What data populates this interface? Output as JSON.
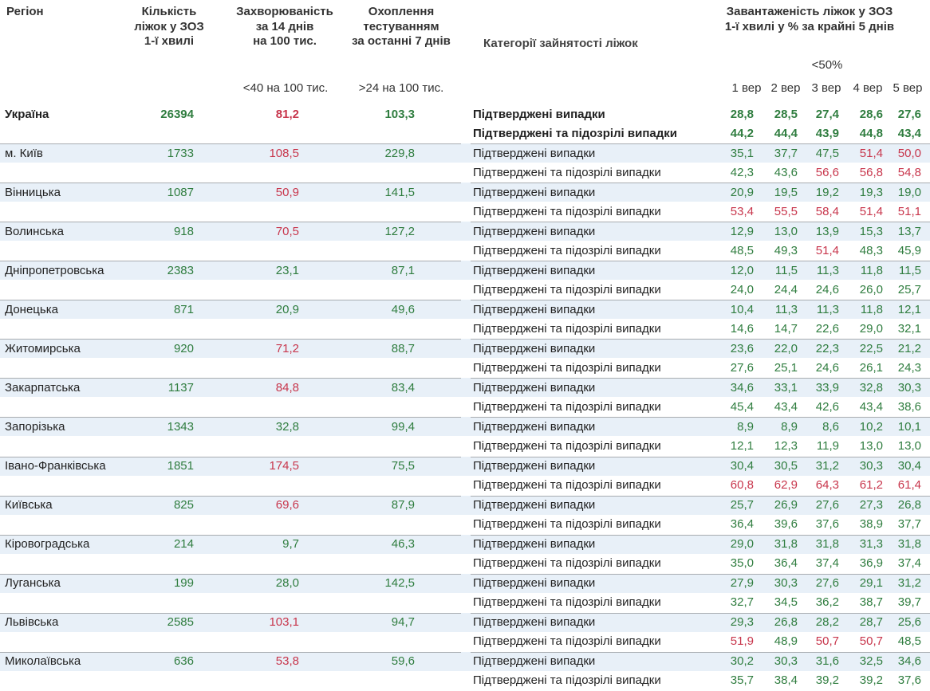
{
  "header": {
    "region": "Регіон",
    "beds": [
      "Кількість",
      "ліжок у ЗОЗ",
      "1-ї хвилі"
    ],
    "incidence": [
      "Захворюваність",
      "за 14 днів",
      "на 100 тис."
    ],
    "testing": [
      "Охоплення",
      "тестуванням",
      "за останні 7 днів"
    ],
    "categories_title": "Категорії зайнятості ліжок",
    "load": [
      "Завантаженість ліжок у ЗОЗ",
      "1-ї хвилі у % за крайні 5 днів"
    ],
    "incidence_threshold": "<40 на 100 тис.",
    "testing_threshold": ">24 на 100 тис.",
    "load_threshold": "<50%",
    "days": [
      "1 вер",
      "2 вер",
      "3 вер",
      "4 вер",
      "5 вер"
    ]
  },
  "categories": [
    "Підтверджені випадки",
    "Підтверджені та підозрілі випадки"
  ],
  "palette": {
    "g": "#2f7d3f",
    "r": "#c8364c"
  },
  "rows": [
    {
      "name": "Україна",
      "bold": true,
      "beds": "26394",
      "incidence": "81,2",
      "testing": "103,3",
      "colors": [
        "g",
        "r",
        "g"
      ],
      "confirmed": [
        "28,8",
        "28,5",
        "27,4",
        "28,6",
        "27,6"
      ],
      "confirmed_colors": [
        "g",
        "g",
        "g",
        "g",
        "g"
      ],
      "suspected": [
        "44,2",
        "44,4",
        "43,9",
        "44,8",
        "43,4"
      ],
      "suspected_colors": [
        "g",
        "g",
        "g",
        "g",
        "g"
      ]
    },
    {
      "name": "м. Київ",
      "beds": "1733",
      "incidence": "108,5",
      "testing": "229,8",
      "colors": [
        "g",
        "r",
        "g"
      ],
      "confirmed": [
        "35,1",
        "37,7",
        "47,5",
        "51,4",
        "50,0"
      ],
      "confirmed_colors": [
        "g",
        "g",
        "g",
        "r",
        "r"
      ],
      "suspected": [
        "42,3",
        "43,6",
        "56,6",
        "56,8",
        "54,8"
      ],
      "suspected_colors": [
        "g",
        "g",
        "r",
        "r",
        "r"
      ]
    },
    {
      "name": "Вінницька",
      "beds": "1087",
      "incidence": "50,9",
      "testing": "141,5",
      "colors": [
        "g",
        "r",
        "g"
      ],
      "confirmed": [
        "20,9",
        "19,5",
        "19,2",
        "19,3",
        "19,0"
      ],
      "confirmed_colors": [
        "g",
        "g",
        "g",
        "g",
        "g"
      ],
      "suspected": [
        "53,4",
        "55,5",
        "58,4",
        "51,4",
        "51,1"
      ],
      "suspected_colors": [
        "r",
        "r",
        "r",
        "r",
        "r"
      ]
    },
    {
      "name": "Волинська",
      "beds": "918",
      "incidence": "70,5",
      "testing": "127,2",
      "colors": [
        "g",
        "r",
        "g"
      ],
      "confirmed": [
        "12,9",
        "13,0",
        "13,9",
        "15,3",
        "13,7"
      ],
      "confirmed_colors": [
        "g",
        "g",
        "g",
        "g",
        "g"
      ],
      "suspected": [
        "48,5",
        "49,3",
        "51,4",
        "48,3",
        "45,9"
      ],
      "suspected_colors": [
        "g",
        "g",
        "r",
        "g",
        "g"
      ]
    },
    {
      "name": "Дніпропетровська",
      "beds": "2383",
      "incidence": "23,1",
      "testing": "87,1",
      "colors": [
        "g",
        "g",
        "g"
      ],
      "confirmed": [
        "12,0",
        "11,5",
        "11,3",
        "11,8",
        "11,5"
      ],
      "confirmed_colors": [
        "g",
        "g",
        "g",
        "g",
        "g"
      ],
      "suspected": [
        "24,0",
        "24,4",
        "24,6",
        "26,0",
        "25,7"
      ],
      "suspected_colors": [
        "g",
        "g",
        "g",
        "g",
        "g"
      ]
    },
    {
      "name": "Донецька",
      "beds": "871",
      "incidence": "20,9",
      "testing": "49,6",
      "colors": [
        "g",
        "g",
        "g"
      ],
      "confirmed": [
        "10,4",
        "11,3",
        "11,3",
        "11,8",
        "12,1"
      ],
      "confirmed_colors": [
        "g",
        "g",
        "g",
        "g",
        "g"
      ],
      "suspected": [
        "14,6",
        "14,7",
        "22,6",
        "29,0",
        "32,1"
      ],
      "suspected_colors": [
        "g",
        "g",
        "g",
        "g",
        "g"
      ]
    },
    {
      "name": "Житомирська",
      "beds": "920",
      "incidence": "71,2",
      "testing": "88,7",
      "colors": [
        "g",
        "r",
        "g"
      ],
      "confirmed": [
        "23,6",
        "22,0",
        "22,3",
        "22,5",
        "21,2"
      ],
      "confirmed_colors": [
        "g",
        "g",
        "g",
        "g",
        "g"
      ],
      "suspected": [
        "27,6",
        "25,1",
        "24,6",
        "26,1",
        "24,3"
      ],
      "suspected_colors": [
        "g",
        "g",
        "g",
        "g",
        "g"
      ]
    },
    {
      "name": "Закарпатська",
      "beds": "1137",
      "incidence": "84,8",
      "testing": "83,4",
      "colors": [
        "g",
        "r",
        "g"
      ],
      "confirmed": [
        "34,6",
        "33,1",
        "33,9",
        "32,8",
        "30,3"
      ],
      "confirmed_colors": [
        "g",
        "g",
        "g",
        "g",
        "g"
      ],
      "suspected": [
        "45,4",
        "43,4",
        "42,6",
        "43,4",
        "38,6"
      ],
      "suspected_colors": [
        "g",
        "g",
        "g",
        "g",
        "g"
      ]
    },
    {
      "name": "Запорізька",
      "beds": "1343",
      "incidence": "32,8",
      "testing": "99,4",
      "colors": [
        "g",
        "g",
        "g"
      ],
      "confirmed": [
        "8,9",
        "8,9",
        "8,6",
        "10,2",
        "10,1"
      ],
      "confirmed_colors": [
        "g",
        "g",
        "g",
        "g",
        "g"
      ],
      "suspected": [
        "12,1",
        "12,3",
        "11,9",
        "13,0",
        "13,0"
      ],
      "suspected_colors": [
        "g",
        "g",
        "g",
        "g",
        "g"
      ]
    },
    {
      "name": "Івано-Франківська",
      "beds": "1851",
      "incidence": "174,5",
      "testing": "75,5",
      "colors": [
        "g",
        "r",
        "g"
      ],
      "confirmed": [
        "30,4",
        "30,5",
        "31,2",
        "30,3",
        "30,4"
      ],
      "confirmed_colors": [
        "g",
        "g",
        "g",
        "g",
        "g"
      ],
      "suspected": [
        "60,8",
        "62,9",
        "64,3",
        "61,2",
        "61,4"
      ],
      "suspected_colors": [
        "r",
        "r",
        "r",
        "r",
        "r"
      ]
    },
    {
      "name": "Київська",
      "beds": "825",
      "incidence": "69,6",
      "testing": "87,9",
      "colors": [
        "g",
        "r",
        "g"
      ],
      "confirmed": [
        "25,7",
        "26,9",
        "27,6",
        "27,3",
        "26,8"
      ],
      "confirmed_colors": [
        "g",
        "g",
        "g",
        "g",
        "g"
      ],
      "suspected": [
        "36,4",
        "39,6",
        "37,6",
        "38,9",
        "37,7"
      ],
      "suspected_colors": [
        "g",
        "g",
        "g",
        "g",
        "g"
      ]
    },
    {
      "name": "Кіровоградська",
      "beds": "214",
      "incidence": "9,7",
      "testing": "46,3",
      "colors": [
        "g",
        "g",
        "g"
      ],
      "confirmed": [
        "29,0",
        "31,8",
        "31,8",
        "31,3",
        "31,8"
      ],
      "confirmed_colors": [
        "g",
        "g",
        "g",
        "g",
        "g"
      ],
      "suspected": [
        "35,0",
        "36,4",
        "37,4",
        "36,9",
        "37,4"
      ],
      "suspected_colors": [
        "g",
        "g",
        "g",
        "g",
        "g"
      ]
    },
    {
      "name": "Луганська",
      "beds": "199",
      "incidence": "28,0",
      "testing": "142,5",
      "colors": [
        "g",
        "g",
        "g"
      ],
      "confirmed": [
        "27,9",
        "30,3",
        "27,6",
        "29,1",
        "31,2"
      ],
      "confirmed_colors": [
        "g",
        "g",
        "g",
        "g",
        "g"
      ],
      "suspected": [
        "32,7",
        "34,5",
        "36,2",
        "38,7",
        "39,7"
      ],
      "suspected_colors": [
        "g",
        "g",
        "g",
        "g",
        "g"
      ]
    },
    {
      "name": "Львівська",
      "beds": "2585",
      "incidence": "103,1",
      "testing": "94,7",
      "colors": [
        "g",
        "r",
        "g"
      ],
      "confirmed": [
        "29,3",
        "26,8",
        "28,2",
        "28,7",
        "25,6"
      ],
      "confirmed_colors": [
        "g",
        "g",
        "g",
        "g",
        "g"
      ],
      "suspected": [
        "51,9",
        "48,9",
        "50,7",
        "50,7",
        "48,5"
      ],
      "suspected_colors": [
        "r",
        "g",
        "r",
        "r",
        "g"
      ]
    },
    {
      "name": "Миколаївська",
      "beds": "636",
      "incidence": "53,8",
      "testing": "59,6",
      "colors": [
        "g",
        "r",
        "g"
      ],
      "confirmed": [
        "30,2",
        "30,3",
        "31,6",
        "32,5",
        "34,6"
      ],
      "confirmed_colors": [
        "g",
        "g",
        "g",
        "g",
        "g"
      ],
      "suspected": [
        "35,7",
        "38,4",
        "39,2",
        "39,2",
        "37,6"
      ],
      "suspected_colors": [
        "g",
        "g",
        "g",
        "g",
        "g"
      ]
    }
  ]
}
